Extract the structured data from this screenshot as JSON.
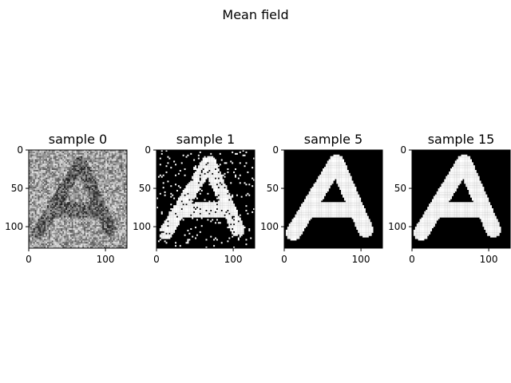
{
  "figure": {
    "title": "Mean field"
  },
  "chart_data": [
    {
      "type": "heatmap",
      "title": "sample 0",
      "image": "noisy-letter-A",
      "colormap": "gray",
      "xlim": [
        0,
        128
      ],
      "ylim": [
        128,
        0
      ],
      "xticks": [
        0,
        100
      ],
      "yticks": [
        0,
        50,
        100
      ],
      "xlabel": "",
      "ylabel": ""
    },
    {
      "type": "heatmap",
      "title": "sample 1",
      "image": "binary-letter-A-speckled",
      "colormap": "gray",
      "xlim": [
        0,
        128
      ],
      "ylim": [
        128,
        0
      ],
      "xticks": [
        0,
        100
      ],
      "yticks": [
        0,
        50,
        100
      ],
      "xlabel": "",
      "ylabel": ""
    },
    {
      "type": "heatmap",
      "title": "sample 5",
      "image": "binary-letter-A",
      "colormap": "gray",
      "xlim": [
        0,
        128
      ],
      "ylim": [
        128,
        0
      ],
      "xticks": [
        0,
        100
      ],
      "yticks": [
        0,
        50,
        100
      ],
      "xlabel": "",
      "ylabel": ""
    },
    {
      "type": "heatmap",
      "title": "sample 15",
      "image": "binary-letter-A",
      "colormap": "gray",
      "xlim": [
        0,
        128
      ],
      "ylim": [
        128,
        0
      ],
      "xticks": [
        0,
        100
      ],
      "yticks": [
        0,
        50,
        100
      ],
      "xlabel": "",
      "ylabel": ""
    }
  ],
  "colors": {
    "background": "#ffffff",
    "axis": "#000000",
    "foreground": "#ffffff",
    "ground": "#000000"
  }
}
